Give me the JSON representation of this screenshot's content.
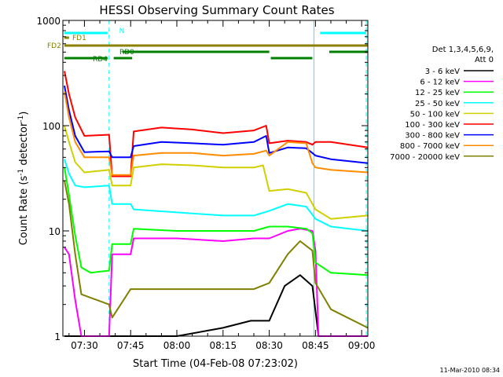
{
  "chart_data": {
    "type": "line",
    "title": "HESSI Observing Summary Count Rates",
    "xlabel": "Start Time (04-Feb-08 07:23:02)",
    "ylabel_main": "Count Rate (s",
    "ylabel_sup1": "-1",
    "ylabel_mid": " detector",
    "ylabel_sup2": "-1",
    "ylabel_end": ")",
    "y_scale": "log",
    "ylim": [
      1,
      1000
    ],
    "y_ticks": [
      {
        "value": 1,
        "label": "1"
      },
      {
        "value": 10,
        "label": "10"
      },
      {
        "value": 100,
        "label": "100"
      },
      {
        "value": 1000,
        "label": "1000"
      }
    ],
    "xlim_min": [
      23.0,
      122.0
    ],
    "x_ticks": [
      {
        "value": 30,
        "label": "07:30"
      },
      {
        "value": 45,
        "label": "07:45"
      },
      {
        "value": 60,
        "label": "08:00"
      },
      {
        "value": 75,
        "label": "08:15"
      },
      {
        "value": 90,
        "label": "08:30"
      },
      {
        "value": 105,
        "label": "08:45"
      },
      {
        "value": 120,
        "label": "09:00"
      }
    ],
    "legend_header": [
      "Det 1,3,4,5,6,9,",
      "Att 0"
    ],
    "legend_position": "right",
    "timestamp": "11-Mar-2010 08:34",
    "flag_bars": [
      {
        "label": "",
        "color": "#00ffff",
        "segments": [
          [
            23.5,
            37.5
          ],
          [
            106.5,
            121.5
          ]
        ]
      },
      {
        "label": "N",
        "color": "#00ffff",
        "segments": []
      },
      {
        "label": "FD1",
        "color": "#8b8000",
        "segments": [
          [
            23.5,
            25.0
          ]
        ]
      },
      {
        "label": "FD2",
        "color": "#8b8000",
        "segments": [
          [
            23.5,
            122.0
          ]
        ]
      },
      {
        "label": "RD0",
        "color": "#008000",
        "segments": [
          [
            42.5,
            90.0
          ],
          [
            109.5,
            122.0
          ]
        ]
      },
      {
        "label": "RD4",
        "color": "#008000",
        "segments": [
          [
            23.5,
            37.5
          ],
          [
            39.5,
            45.5
          ],
          [
            90.5,
            104.0
          ]
        ]
      }
    ],
    "vlines_dashed": [
      38.0,
      121.5
    ],
    "vlines_solid": [
      104.5
    ],
    "series": [
      {
        "name": "3 - 6 keV",
        "color": "#000000",
        "points": [
          [
            23.5,
            1
          ],
          [
            45,
            1
          ],
          [
            60,
            1
          ],
          [
            75,
            1.2
          ],
          [
            84,
            1.4
          ],
          [
            90,
            1.4
          ],
          [
            95,
            3.0
          ],
          [
            100,
            3.8
          ],
          [
            104,
            3.0
          ],
          [
            106,
            1
          ],
          [
            122,
            1
          ]
        ]
      },
      {
        "name": "6 - 12 keV",
        "color": "#ff00ff",
        "points": [
          [
            23.5,
            7.0
          ],
          [
            25,
            6.0
          ],
          [
            27,
            2.2
          ],
          [
            29,
            1
          ],
          [
            38,
            1
          ],
          [
            39,
            6.0
          ],
          [
            45,
            6.0
          ],
          [
            46,
            8.5
          ],
          [
            60,
            8.5
          ],
          [
            75,
            8.0
          ],
          [
            85,
            8.5
          ],
          [
            90,
            8.5
          ],
          [
            96,
            10.0
          ],
          [
            100,
            10.5
          ],
          [
            104,
            10.0
          ],
          [
            105,
            6.5
          ],
          [
            106,
            1
          ],
          [
            122,
            1
          ]
        ]
      },
      {
        "name": "12 - 25 keV",
        "color": "#00ff00",
        "points": [
          [
            23.5,
            40
          ],
          [
            25,
            22
          ],
          [
            27,
            9.0
          ],
          [
            29,
            4.5
          ],
          [
            32,
            4.0
          ],
          [
            38,
            4.2
          ],
          [
            39,
            7.5
          ],
          [
            45,
            7.5
          ],
          [
            46,
            10.5
          ],
          [
            60,
            10.0
          ],
          [
            75,
            10.0
          ],
          [
            85,
            10.0
          ],
          [
            90,
            11.0
          ],
          [
            96,
            11.0
          ],
          [
            102,
            10.5
          ],
          [
            104,
            9.5
          ],
          [
            105,
            5.0
          ],
          [
            110,
            4.0
          ],
          [
            122,
            3.8
          ]
        ]
      },
      {
        "name": "25 - 50 keV",
        "color": "#00ffff",
        "points": [
          [
            23.5,
            48
          ],
          [
            25,
            35
          ],
          [
            27,
            27
          ],
          [
            30,
            26
          ],
          [
            38,
            27
          ],
          [
            39,
            18
          ],
          [
            45,
            18
          ],
          [
            46,
            16
          ],
          [
            60,
            15
          ],
          [
            75,
            14
          ],
          [
            85,
            14
          ],
          [
            90,
            15.5
          ],
          [
            96,
            18
          ],
          [
            102,
            17
          ],
          [
            105,
            13
          ],
          [
            110,
            11
          ],
          [
            122,
            10
          ]
        ]
      },
      {
        "name": "50 - 100 keV",
        "color": "#d0d000",
        "points": [
          [
            23.5,
            100
          ],
          [
            25,
            70
          ],
          [
            27,
            45
          ],
          [
            30,
            36
          ],
          [
            38,
            38
          ],
          [
            39,
            27
          ],
          [
            45,
            27
          ],
          [
            46,
            40
          ],
          [
            55,
            43
          ],
          [
            65,
            42
          ],
          [
            75,
            40
          ],
          [
            85,
            40
          ],
          [
            88,
            42
          ],
          [
            90,
            24
          ],
          [
            96,
            25
          ],
          [
            102,
            23
          ],
          [
            105,
            16
          ],
          [
            110,
            13
          ],
          [
            122,
            14
          ]
        ]
      },
      {
        "name": "100 - 300 keV",
        "color": "#ff0000",
        "points": [
          [
            23.5,
            330
          ],
          [
            25,
            200
          ],
          [
            27,
            120
          ],
          [
            30,
            80
          ],
          [
            38,
            82
          ],
          [
            39,
            33
          ],
          [
            45,
            33
          ],
          [
            46,
            88
          ],
          [
            55,
            96
          ],
          [
            65,
            92
          ],
          [
            75,
            85
          ],
          [
            85,
            90
          ],
          [
            89,
            100
          ],
          [
            90,
            68
          ],
          [
            96,
            72
          ],
          [
            102,
            70
          ],
          [
            104,
            66
          ],
          [
            105,
            70
          ],
          [
            110,
            70
          ],
          [
            122,
            62
          ]
        ]
      },
      {
        "name": "300 - 800 keV",
        "color": "#0000ff",
        "points": [
          [
            23.5,
            240
          ],
          [
            25,
            140
          ],
          [
            27,
            80
          ],
          [
            30,
            56
          ],
          [
            38,
            57
          ],
          [
            39,
            50
          ],
          [
            45,
            50
          ],
          [
            46,
            64
          ],
          [
            55,
            70
          ],
          [
            65,
            68
          ],
          [
            75,
            66
          ],
          [
            85,
            70
          ],
          [
            89,
            80
          ],
          [
            90,
            55
          ],
          [
            96,
            62
          ],
          [
            102,
            61
          ],
          [
            104,
            55
          ],
          [
            105,
            52
          ],
          [
            110,
            48
          ],
          [
            122,
            44
          ]
        ]
      },
      {
        "name": "800 - 7000 keV",
        "color": "#ff8c00",
        "points": [
          [
            23.5,
            210
          ],
          [
            25,
            120
          ],
          [
            27,
            70
          ],
          [
            30,
            50
          ],
          [
            38,
            50
          ],
          [
            39,
            34
          ],
          [
            45,
            34
          ],
          [
            46,
            52
          ],
          [
            55,
            55
          ],
          [
            65,
            55
          ],
          [
            75,
            52
          ],
          [
            85,
            54
          ],
          [
            89,
            58
          ],
          [
            90,
            52
          ],
          [
            96,
            70
          ],
          [
            102,
            68
          ],
          [
            104,
            44
          ],
          [
            105,
            40
          ],
          [
            110,
            38
          ],
          [
            122,
            36
          ]
        ]
      },
      {
        "name": "7000 - 20000 keV",
        "color": "#808000",
        "points": [
          [
            23.5,
            30
          ],
          [
            25,
            18
          ],
          [
            27,
            6.0
          ],
          [
            29,
            2.5
          ],
          [
            38,
            2.0
          ],
          [
            39,
            1.5
          ],
          [
            45,
            2.8
          ],
          [
            60,
            2.8
          ],
          [
            75,
            2.8
          ],
          [
            85,
            2.8
          ],
          [
            90,
            3.2
          ],
          [
            96,
            6.0
          ],
          [
            100,
            8.0
          ],
          [
            104,
            6.5
          ],
          [
            105,
            3.2
          ],
          [
            110,
            1.8
          ],
          [
            122,
            1.2
          ]
        ]
      }
    ]
  }
}
